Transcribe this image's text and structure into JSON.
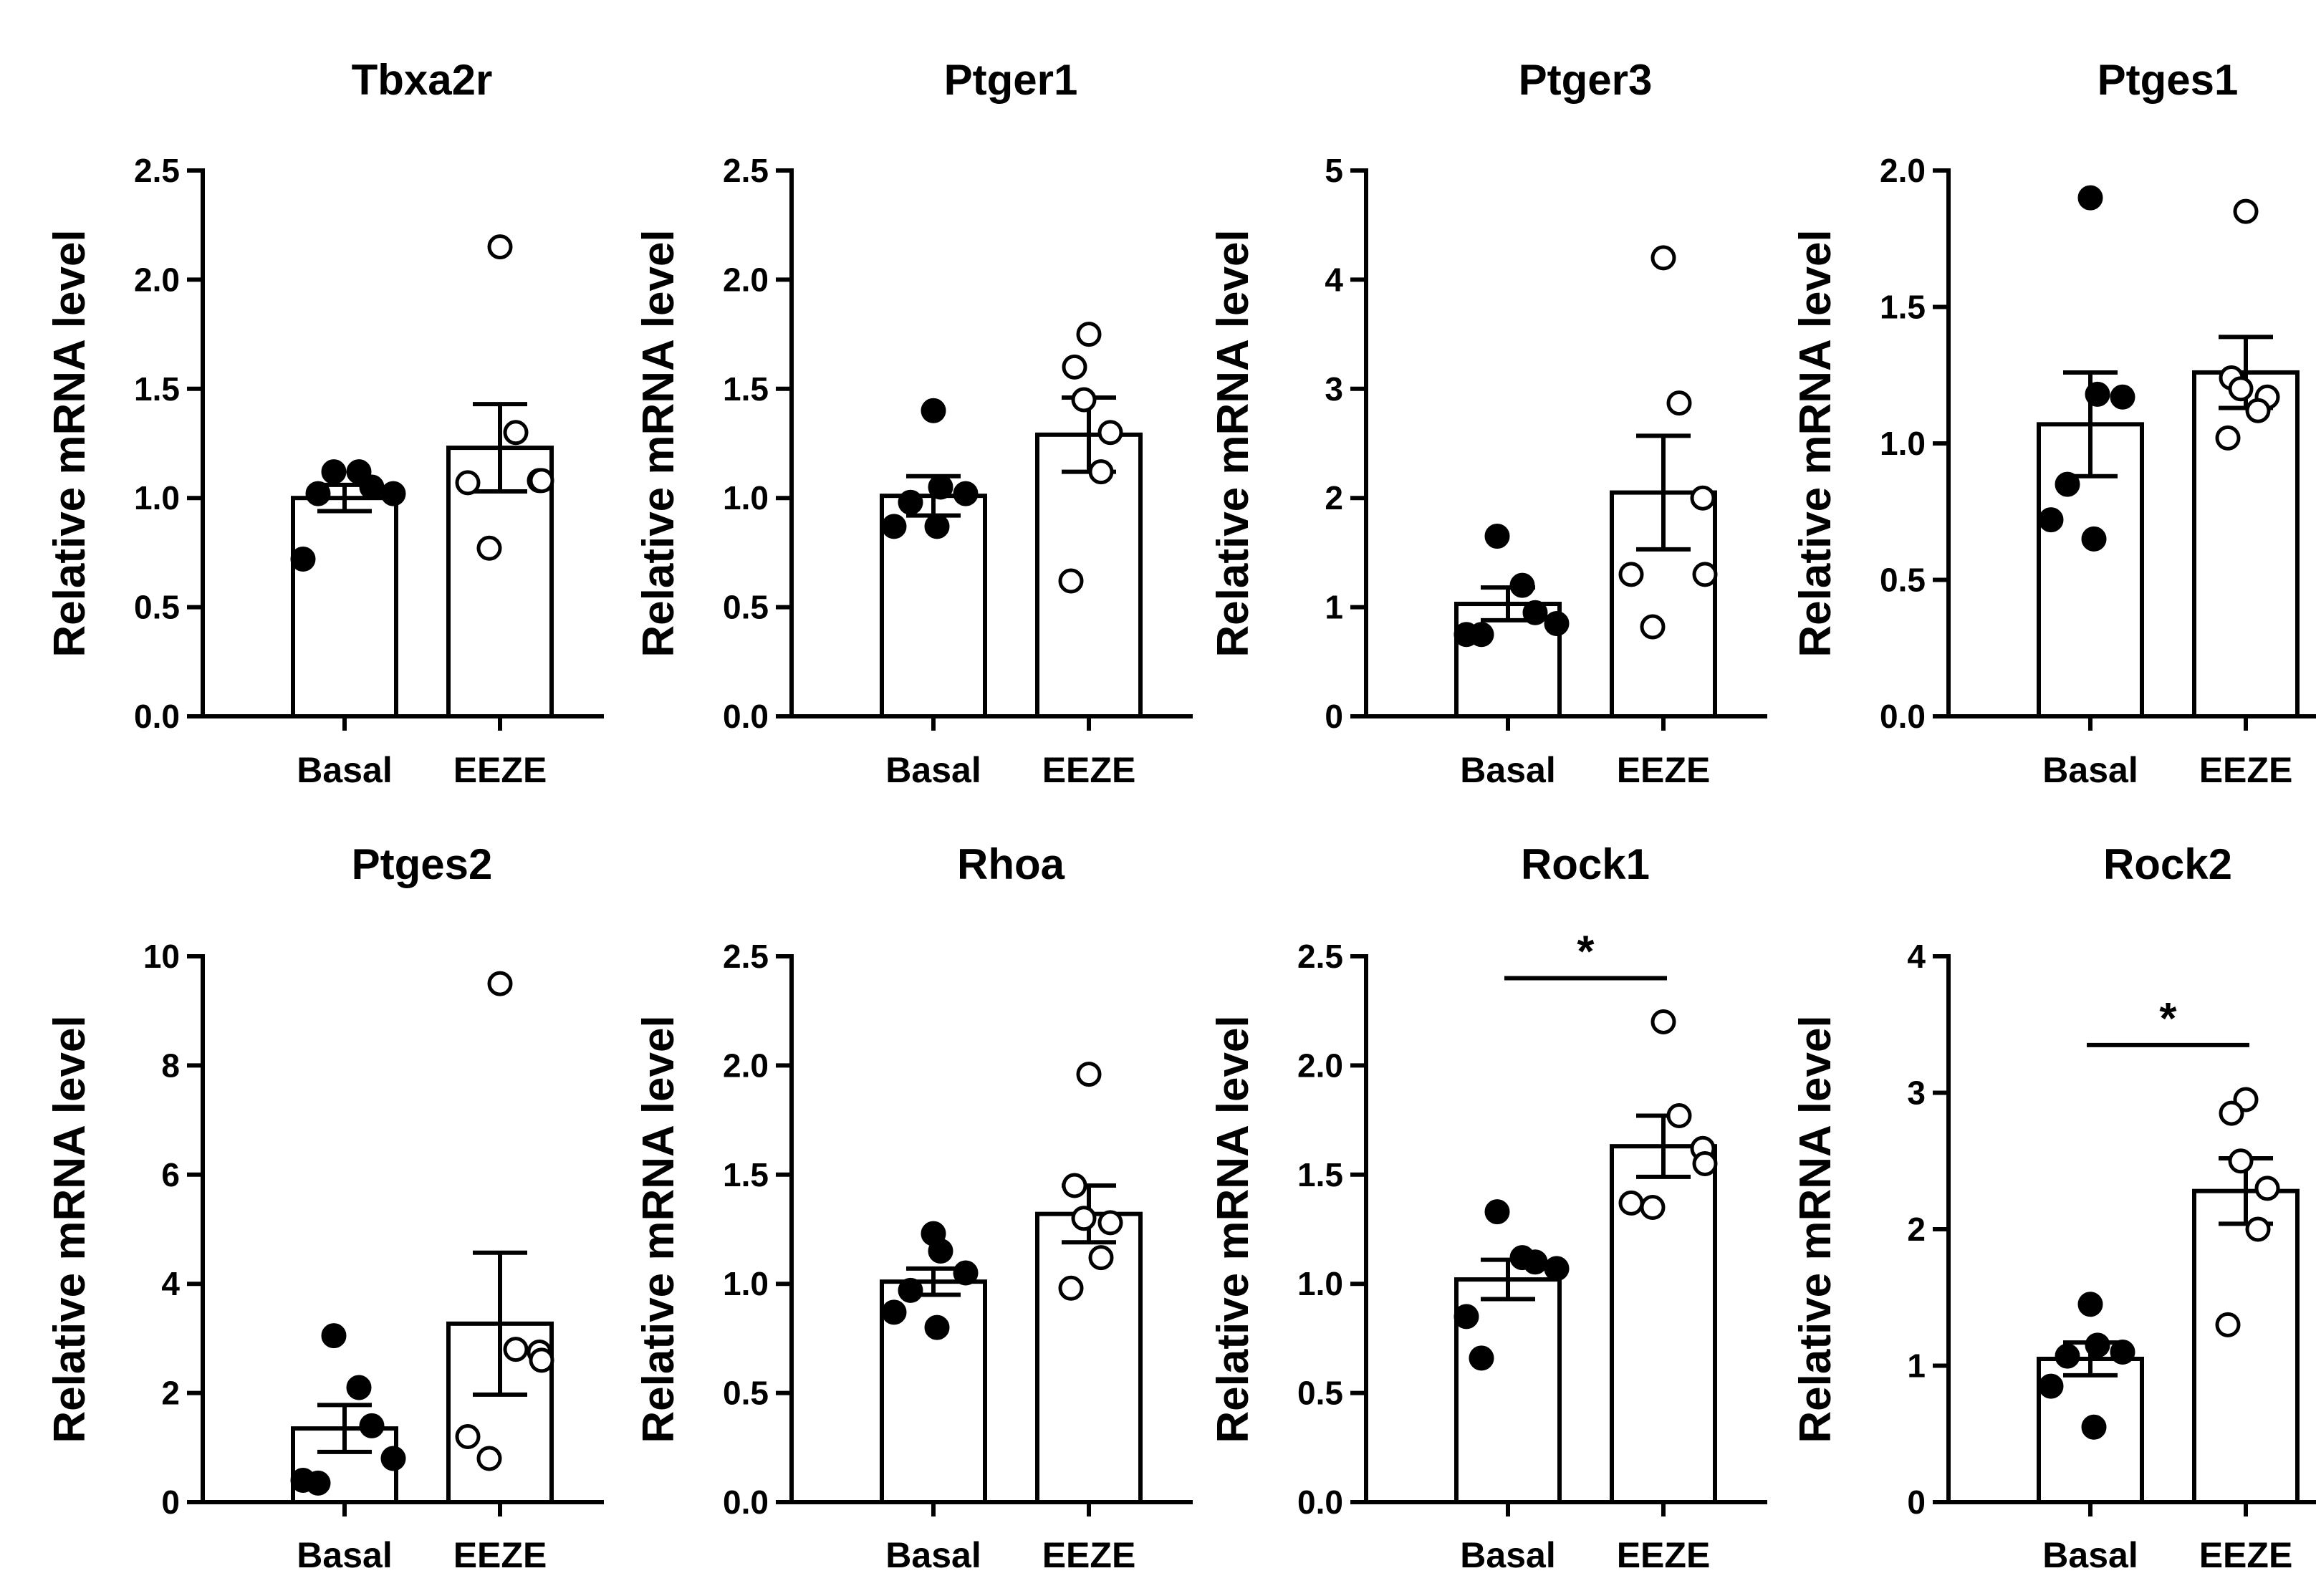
{
  "chart_data": [
    {
      "type": "bar",
      "title": "Tbxa2r",
      "ylabel": "Relative mRNA level",
      "xlabel": "",
      "categories": [
        "Basal",
        "EEZE"
      ],
      "ylim": [
        0,
        2.5
      ],
      "yticks": [
        0.0,
        0.5,
        1.0,
        1.5,
        2.0,
        2.5
      ],
      "ytick_labels": [
        "0.0",
        "0.5",
        "1.0",
        "1.5",
        "2.0",
        "2.5"
      ],
      "means": [
        1.0,
        1.23
      ],
      "sem": [
        0.06,
        0.2
      ],
      "points": [
        [
          1.12,
          1.12,
          1.05,
          1.02,
          0.72,
          1.02
        ],
        [
          2.15,
          1.3,
          1.08,
          1.08,
          1.07,
          0.77
        ]
      ],
      "significance": null
    },
    {
      "type": "bar",
      "title": "Ptger1",
      "ylabel": "Relative mRNA level",
      "xlabel": "",
      "categories": [
        "Basal",
        "EEZE"
      ],
      "ylim": [
        0,
        2.5
      ],
      "yticks": [
        0.0,
        0.5,
        1.0,
        1.5,
        2.0,
        2.5
      ],
      "ytick_labels": [
        "0.0",
        "0.5",
        "1.0",
        "1.5",
        "2.0",
        "2.5"
      ],
      "means": [
        1.01,
        1.29
      ],
      "sem": [
        0.09,
        0.17
      ],
      "points": [
        [
          1.4,
          1.05,
          1.02,
          0.98,
          0.87,
          0.87
        ],
        [
          1.75,
          1.6,
          1.45,
          1.3,
          1.12,
          0.62
        ]
      ],
      "significance": null
    },
    {
      "type": "bar",
      "title": "Ptger3",
      "ylabel": "Relative mRNA level",
      "xlabel": "",
      "categories": [
        "Basal",
        "EEZE"
      ],
      "ylim": [
        0,
        5
      ],
      "yticks": [
        0,
        1,
        2,
        3,
        4,
        5
      ],
      "ytick_labels": [
        "0",
        "1",
        "2",
        "3",
        "4",
        "5"
      ],
      "means": [
        1.03,
        2.05
      ],
      "sem": [
        0.15,
        0.52
      ],
      "points": [
        [
          1.65,
          1.2,
          0.95,
          0.85,
          0.75,
          0.75
        ],
        [
          4.2,
          2.87,
          2.0,
          1.3,
          1.3,
          0.82
        ]
      ],
      "significance": null
    },
    {
      "type": "bar",
      "title": "Ptges1",
      "ylabel": "Relative mRNA level",
      "xlabel": "",
      "categories": [
        "Basal",
        "EEZE"
      ],
      "ylim": [
        0,
        2.0
      ],
      "yticks": [
        0.0,
        0.5,
        1.0,
        1.5,
        2.0
      ],
      "ytick_labels": [
        "0.0",
        "0.5",
        "1.0",
        "1.5",
        "2.0"
      ],
      "means": [
        1.07,
        1.26
      ],
      "sem": [
        0.19,
        0.13
      ],
      "points": [
        [
          1.9,
          1.18,
          1.17,
          0.85,
          0.72,
          0.65
        ],
        [
          1.85,
          1.24,
          1.2,
          1.17,
          1.12,
          1.02
        ]
      ],
      "significance": null
    },
    {
      "type": "bar",
      "title": "Ptges2",
      "ylabel": "Relative mRNA level",
      "xlabel": "",
      "categories": [
        "Basal",
        "EEZE"
      ],
      "ylim": [
        0,
        10
      ],
      "yticks": [
        0,
        2,
        4,
        6,
        8,
        10
      ],
      "ytick_labels": [
        "0",
        "2",
        "4",
        "6",
        "8",
        "10"
      ],
      "means": [
        1.35,
        3.27
      ],
      "sem": [
        0.43,
        1.3
      ],
      "points": [
        [
          3.05,
          2.1,
          1.4,
          0.8,
          0.4,
          0.35
        ],
        [
          9.5,
          2.8,
          2.75,
          2.6,
          1.2,
          0.8
        ]
      ],
      "significance": null
    },
    {
      "type": "bar",
      "title": "Rhoa",
      "ylabel": "Relative mRNA level",
      "xlabel": "",
      "categories": [
        "Basal",
        "EEZE"
      ],
      "ylim": [
        0,
        2.5
      ],
      "yticks": [
        0.0,
        0.5,
        1.0,
        1.5,
        2.0,
        2.5
      ],
      "ytick_labels": [
        "0.0",
        "0.5",
        "1.0",
        "1.5",
        "2.0",
        "2.5"
      ],
      "means": [
        1.01,
        1.32
      ],
      "sem": [
        0.06,
        0.13
      ],
      "points": [
        [
          1.23,
          1.15,
          1.05,
          0.97,
          0.87,
          0.8
        ],
        [
          1.96,
          1.45,
          1.3,
          1.28,
          1.12,
          0.98
        ]
      ],
      "significance": null
    },
    {
      "type": "bar",
      "title": "Rock1",
      "ylabel": "Relative mRNA level",
      "xlabel": "",
      "categories": [
        "Basal",
        "EEZE"
      ],
      "ylim": [
        0,
        2.5
      ],
      "yticks": [
        0.0,
        0.5,
        1.0,
        1.5,
        2.0,
        2.5
      ],
      "ytick_labels": [
        "0.0",
        "0.5",
        "1.0",
        "1.5",
        "2.0",
        "2.5"
      ],
      "means": [
        1.02,
        1.63
      ],
      "sem": [
        0.09,
        0.14
      ],
      "points": [
        [
          1.33,
          1.12,
          1.1,
          1.07,
          0.85,
          0.66
        ],
        [
          2.2,
          1.77,
          1.62,
          1.55,
          1.37,
          1.35
        ]
      ],
      "significance": {
        "label": "*",
        "level": 2.4
      }
    },
    {
      "type": "bar",
      "title": "Rock2",
      "ylabel": "Relative mRNA level",
      "xlabel": "",
      "categories": [
        "Basal",
        "EEZE"
      ],
      "ylim": [
        0,
        4
      ],
      "yticks": [
        0,
        1,
        2,
        3,
        4
      ],
      "ytick_labels": [
        "0",
        "1",
        "2",
        "3",
        "4"
      ],
      "means": [
        1.05,
        2.28
      ],
      "sem": [
        0.12,
        0.24
      ],
      "points": [
        [
          1.45,
          1.15,
          1.1,
          1.07,
          0.85,
          0.55
        ],
        [
          2.95,
          2.85,
          2.5,
          2.3,
          2.0,
          1.3
        ]
      ],
      "significance": {
        "label": "*",
        "level": 3.35
      }
    }
  ]
}
